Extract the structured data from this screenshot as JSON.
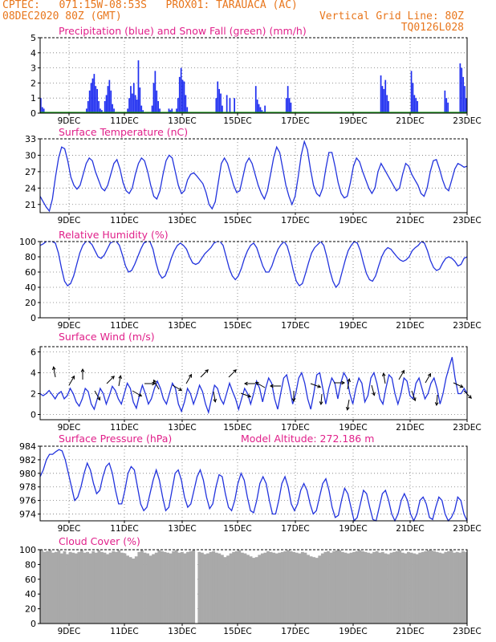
{
  "header": {
    "line1": "CPTEC:   071:15W-08:53S   PROX01: TARAUACA (AC)",
    "line2": "08DEC2020 80Z (GMT)",
    "grid_note": "Vertical Grid Line: 80Z",
    "code": "TQ0126L028"
  },
  "x_ticks": [
    "9DEC",
    "11DEC",
    "13DEC",
    "15DEC",
    "17DEC",
    "19DEC",
    "21DEC",
    "23DEC"
  ],
  "colors": {
    "title": "#e0208a",
    "header": "#e8761c",
    "line": "#2233dd",
    "bar": "#1f2ef0",
    "snow": "#1a9a1a",
    "cloud": "#a9a9a9"
  },
  "chart_data": [
    {
      "type": "bar",
      "title": "Precipitation (blue) and Snow Fall (green) (mm/h)",
      "ylim": [
        0,
        5
      ],
      "yticks": [
        0,
        1,
        2,
        3,
        4,
        5
      ],
      "series": [
        {
          "name": "Precipitation",
          "values": [
            1.0,
            0.4,
            0.3,
            0,
            0,
            0,
            0,
            0,
            0,
            0,
            0,
            0,
            0,
            0,
            0,
            0,
            0,
            0,
            0,
            0,
            0,
            0,
            0,
            0,
            0,
            0,
            0,
            0,
            0,
            0,
            0.3,
            0.8,
            1.5,
            2.0,
            2.3,
            2.6,
            1.8,
            1.6,
            0.8,
            0.3,
            0.2,
            0,
            0.8,
            1.2,
            1.8,
            2.2,
            1.5,
            0.6,
            0.3,
            0,
            0,
            0,
            0,
            0,
            0,
            0,
            0,
            0.3,
            1.0,
            1.8,
            1.3,
            2.0,
            1.2,
            0.9,
            3.5,
            1.7,
            0.5,
            0.2,
            0,
            0,
            0,
            0,
            0,
            0.5,
            2.0,
            2.8,
            1.5,
            0.8,
            0.3,
            0,
            0,
            0,
            0,
            0,
            0.3,
            0.2,
            0.3,
            0,
            0,
            0.3,
            1.0,
            2.4,
            3.0,
            2.2,
            2.1,
            1.2,
            0.4,
            0,
            0,
            0,
            0,
            0,
            0,
            0,
            0,
            0,
            0,
            0,
            0,
            0,
            0,
            0,
            0,
            0,
            0,
            1.0,
            2.1,
            1.6,
            1.3,
            0.5,
            0,
            0,
            1.2,
            0,
            1.0,
            0,
            0,
            1.0,
            0,
            0,
            0,
            0,
            0,
            0,
            0,
            0,
            0,
            0,
            0,
            0,
            0,
            1.8,
            0.9,
            0.6,
            0.4,
            0.2,
            0.1,
            0.5,
            0,
            0,
            0,
            0,
            0,
            0,
            0,
            0,
            0,
            0,
            0,
            0,
            0,
            1.0,
            1.8,
            1.0,
            0.7,
            0,
            0,
            0,
            0,
            0,
            0,
            0,
            0,
            0,
            0,
            0,
            0,
            0,
            0,
            0,
            0,
            0,
            0,
            0,
            0,
            0,
            0,
            0,
            0,
            0,
            0,
            0,
            0,
            0,
            0,
            0,
            0,
            0,
            0,
            0,
            0,
            0,
            0,
            0,
            0,
            0,
            0,
            0,
            0,
            0,
            0,
            0,
            0,
            0,
            0,
            0,
            0,
            0,
            0,
            0,
            0,
            0,
            0,
            2.5,
            1.8,
            1.6,
            2.2,
            1.2,
            0.8,
            0,
            0,
            0,
            0,
            0,
            0,
            0,
            0,
            0,
            0,
            0,
            0,
            0,
            0,
            2.8,
            2.0,
            1.2,
            1.0,
            0.8,
            0,
            0,
            0,
            0,
            0,
            0,
            0,
            0,
            0,
            0,
            0,
            0,
            0,
            0,
            0,
            0,
            0,
            1.5,
            1.0,
            0.7,
            0,
            0,
            0,
            0,
            0,
            0,
            0,
            3.3,
            3.0,
            2.4,
            1.8,
            1.0
          ]
        },
        {
          "name": "Snow Fall",
          "values": [
            0
          ]
        }
      ]
    },
    {
      "type": "line",
      "title": "Surface Temperature (nC)",
      "ylim": [
        19.5,
        33
      ],
      "yticks": [
        21,
        24,
        27,
        30,
        33
      ],
      "values": [
        22.5,
        21.5,
        20.5,
        19.8,
        22.0,
        26.0,
        29.5,
        31.5,
        31.2,
        29.0,
        26.0,
        24.5,
        23.8,
        24.5,
        26.5,
        28.5,
        29.5,
        29.0,
        27.0,
        25.5,
        24.0,
        23.5,
        24.5,
        26.5,
        28.5,
        29.2,
        27.5,
        25.0,
        23.5,
        23.0,
        24.0,
        26.5,
        28.5,
        29.5,
        29.0,
        27.0,
        24.5,
        22.5,
        22.0,
        23.5,
        26.5,
        29.0,
        30.0,
        29.5,
        27.0,
        24.5,
        23.0,
        23.5,
        25.5,
        26.5,
        26.8,
        26.2,
        25.5,
        24.8,
        23.2,
        21.0,
        20.2,
        21.5,
        25.0,
        28.5,
        29.5,
        28.5,
        26.5,
        24.5,
        23.2,
        23.5,
        26.0,
        28.5,
        29.5,
        28.5,
        26.5,
        24.5,
        23.0,
        22.0,
        23.5,
        26.5,
        29.5,
        31.5,
        30.5,
        27.5,
        24.5,
        22.5,
        21.0,
        22.5,
        26.0,
        30.0,
        32.5,
        31.0,
        27.5,
        24.5,
        23.0,
        22.5,
        24.0,
        27.5,
        30.5,
        30.5,
        28.0,
        25.0,
        23.0,
        22.2,
        22.5,
        25.0,
        28.0,
        29.5,
        28.8,
        27.0,
        25.5,
        24.0,
        23.0,
        24.0,
        27.0,
        28.5,
        27.5,
        26.5,
        25.5,
        24.5,
        23.5,
        24.0,
        26.5,
        28.5,
        28.0,
        26.5,
        25.5,
        24.5,
        23.0,
        22.5,
        24.0,
        27.0,
        29.0,
        29.2,
        27.5,
        25.5,
        24.0,
        23.5,
        25.5,
        27.5,
        28.5,
        28.2,
        27.8,
        28.0
      ]
    },
    {
      "type": "line",
      "title": "Relative Humidity (%)",
      "ylim": [
        0,
        100
      ],
      "yticks": [
        0,
        20,
        40,
        60,
        80,
        100
      ],
      "values": [
        95,
        97,
        100,
        100,
        100,
        98,
        85,
        65,
        48,
        42,
        45,
        55,
        70,
        85,
        95,
        100,
        100,
        96,
        88,
        80,
        78,
        82,
        90,
        98,
        100,
        100,
        95,
        82,
        68,
        60,
        62,
        70,
        80,
        90,
        98,
        100,
        100,
        90,
        72,
        58,
        52,
        55,
        65,
        78,
        88,
        95,
        98,
        95,
        90,
        80,
        72,
        70,
        72,
        78,
        84,
        88,
        92,
        98,
        100,
        100,
        95,
        80,
        65,
        55,
        50,
        55,
        65,
        78,
        88,
        95,
        98,
        92,
        80,
        68,
        60,
        60,
        68,
        80,
        90,
        96,
        100,
        94,
        80,
        62,
        48,
        42,
        45,
        58,
        72,
        85,
        92,
        96,
        100,
        95,
        80,
        62,
        48,
        40,
        45,
        60,
        75,
        88,
        95,
        100,
        98,
        88,
        72,
        58,
        50,
        48,
        55,
        68,
        80,
        88,
        92,
        90,
        85,
        80,
        76,
        74,
        76,
        80,
        88,
        92,
        95,
        100,
        98,
        88,
        75,
        66,
        62,
        64,
        72,
        78,
        80,
        78,
        74,
        68,
        70,
        78,
        80
      ]
    },
    {
      "type": "line",
      "title": "Surface Wind (m/s)",
      "ylim": [
        -0.5,
        6.5
      ],
      "yticks": [
        0,
        2,
        4,
        6
      ],
      "values": [
        2.0,
        1.8,
        2.0,
        2.3,
        1.9,
        1.5,
        2.0,
        2.2,
        1.5,
        1.8,
        2.5,
        2.0,
        1.2,
        0.8,
        1.5,
        2.5,
        2.2,
        1.0,
        0.5,
        1.5,
        2.5,
        2.0,
        1.0,
        1.8,
        2.7,
        2.3,
        1.5,
        1.0,
        2.0,
        3.0,
        2.5,
        1.2,
        0.6,
        1.8,
        2.8,
        2.0,
        1.0,
        1.5,
        2.5,
        3.2,
        2.5,
        1.5,
        1.0,
        2.0,
        3.0,
        2.5,
        1.0,
        0.3,
        1.2,
        2.5,
        2.0,
        1.0,
        1.8,
        2.8,
        2.2,
        1.0,
        0.2,
        1.5,
        2.8,
        2.5,
        1.5,
        1.0,
        2.0,
        3.0,
        2.2,
        1.5,
        0.5,
        1.5,
        2.5,
        2.0,
        1.0,
        2.0,
        3.2,
        2.5,
        1.2,
        2.5,
        3.5,
        3.0,
        1.5,
        0.5,
        2.0,
        3.5,
        3.8,
        2.5,
        1.0,
        2.0,
        3.5,
        4.0,
        3.0,
        1.5,
        0.5,
        2.0,
        3.8,
        4.0,
        2.5,
        1.0,
        2.5,
        3.5,
        3.0,
        1.5,
        3.0,
        4.0,
        3.5,
        2.0,
        1.0,
        2.5,
        3.5,
        3.0,
        1.2,
        1.8,
        3.5,
        4.0,
        3.0,
        1.5,
        1.0,
        2.5,
        3.8,
        3.5,
        2.0,
        1.0,
        2.0,
        3.5,
        3.2,
        1.8,
        1.5,
        3.0,
        3.5,
        2.5,
        1.5,
        2.0,
        3.0,
        3.5,
        2.5,
        1.0,
        2.0,
        3.5,
        4.5,
        5.5,
        3.5,
        2.0,
        2.0,
        2.5,
        2.0
      ]
    },
    {
      "type": "line",
      "title": "Surface Pressure (hPa)",
      "annotation": "Model Altitude: 272.186 m",
      "ylim": [
        973,
        984
      ],
      "yticks": [
        974,
        976,
        978,
        980,
        982,
        984
      ],
      "values": [
        979.5,
        980.5,
        982.0,
        982.8,
        982.8,
        983.2,
        983.5,
        983.3,
        982.0,
        980.0,
        978.0,
        976.0,
        976.5,
        978.0,
        980.0,
        981.5,
        980.5,
        978.5,
        977.0,
        977.5,
        979.5,
        981.0,
        981.5,
        980.0,
        977.5,
        975.5,
        975.5,
        977.5,
        980.0,
        981.0,
        980.5,
        978.0,
        975.5,
        974.5,
        975.0,
        977.0,
        979.0,
        980.5,
        979.0,
        976.5,
        974.5,
        975.0,
        977.5,
        980.0,
        980.5,
        979.0,
        976.5,
        975.0,
        975.5,
        977.5,
        979.5,
        980.5,
        979.0,
        976.5,
        974.8,
        975.5,
        978.0,
        979.8,
        979.5,
        977.0,
        975.0,
        974.5,
        976.0,
        978.5,
        980.0,
        979.0,
        976.5,
        974.5,
        974.2,
        976.0,
        978.5,
        979.5,
        978.5,
        976.0,
        974.0,
        974.0,
        976.0,
        978.5,
        979.5,
        978.0,
        975.5,
        974.5,
        975.5,
        977.5,
        978.5,
        977.5,
        975.5,
        974.0,
        974.5,
        976.5,
        978.5,
        979.2,
        977.5,
        975.0,
        973.5,
        973.8,
        976.0,
        977.8,
        977.0,
        975.0,
        973.0,
        973.5,
        975.5,
        977.5,
        977.0,
        975.0,
        973.2,
        973.0,
        975.0,
        977.0,
        977.5,
        976.0,
        974.0,
        973.0,
        974.0,
        976.0,
        977.0,
        976.0,
        974.0,
        973.0,
        974.0,
        976.0,
        976.5,
        975.5,
        973.5,
        973.2,
        975.0,
        976.5,
        976.0,
        974.0,
        973.0,
        973.5,
        974.5,
        976.5,
        976.0,
        974.0,
        973.0
      ]
    },
    {
      "type": "bar",
      "title": "Cloud Cover (%)",
      "ylim": [
        0,
        100
      ],
      "yticks": [
        0,
        20,
        40,
        60,
        80,
        100
      ],
      "values": [
        100,
        97,
        98,
        100,
        96,
        97,
        100,
        95,
        98,
        94,
        97,
        96,
        95,
        97,
        100,
        96,
        97,
        95,
        98,
        96,
        100,
        97,
        96,
        94,
        96,
        98,
        97,
        100,
        96,
        95,
        92,
        90,
        88,
        91,
        97,
        100,
        96,
        95,
        92,
        94,
        96,
        100,
        98,
        97,
        96,
        95,
        98,
        100,
        96,
        97,
        95,
        97,
        98,
        100,
        0,
        97,
        96,
        94,
        95,
        97,
        98,
        96,
        95,
        93,
        90,
        92,
        95,
        97,
        98,
        100,
        96,
        95,
        93,
        91,
        89,
        90,
        93,
        95,
        96,
        98,
        97,
        96,
        95,
        96,
        97,
        98,
        100,
        98,
        97,
        96,
        95,
        97,
        96,
        93,
        91,
        90,
        89,
        92,
        95,
        97,
        98,
        96,
        98,
        99,
        100,
        97,
        96,
        95,
        96,
        97,
        98,
        100,
        98,
        97,
        96,
        95,
        97,
        98,
        96,
        97,
        95,
        94,
        96,
        97,
        98,
        100,
        96,
        95,
        97,
        96,
        95,
        94,
        96,
        97,
        98,
        100,
        99,
        98,
        97,
        96,
        95,
        97,
        98,
        100,
        96,
        97,
        96,
        98,
        97
      ]
    }
  ]
}
